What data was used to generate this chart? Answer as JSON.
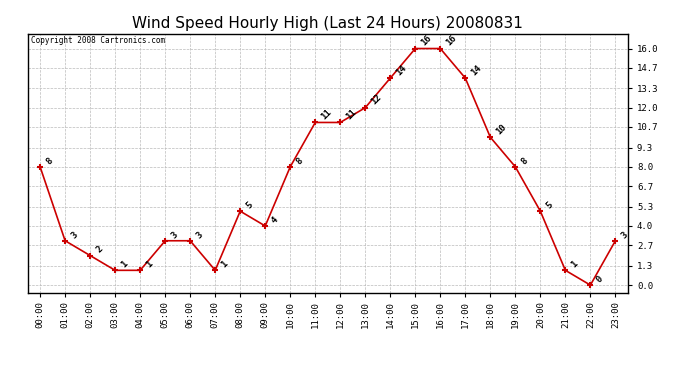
{
  "title": "Wind Speed Hourly High (Last 24 Hours) 20080831",
  "copyright": "Copyright 2008 Cartronics.com",
  "hours": [
    "00:00",
    "01:00",
    "02:00",
    "03:00",
    "04:00",
    "05:00",
    "06:00",
    "07:00",
    "08:00",
    "09:00",
    "10:00",
    "11:00",
    "12:00",
    "13:00",
    "14:00",
    "15:00",
    "16:00",
    "17:00",
    "18:00",
    "19:00",
    "20:00",
    "21:00",
    "22:00",
    "23:00"
  ],
  "values": [
    8,
    3,
    2,
    1,
    1,
    3,
    3,
    1,
    5,
    4,
    8,
    11,
    11,
    12,
    14,
    16,
    16,
    14,
    10,
    8,
    5,
    1,
    0,
    3
  ],
  "line_color": "#cc0000",
  "marker_color": "#cc0000",
  "bg_color": "#ffffff",
  "grid_color": "#bbbbbb",
  "yticks": [
    0.0,
    1.3,
    2.7,
    4.0,
    5.3,
    6.7,
    8.0,
    9.3,
    10.7,
    12.0,
    13.3,
    14.7,
    16.0
  ],
  "ylim": [
    -0.5,
    17.0
  ],
  "title_fontsize": 11,
  "label_fontsize": 6.5,
  "annotation_fontsize": 6.5,
  "copyright_fontsize": 5.5
}
